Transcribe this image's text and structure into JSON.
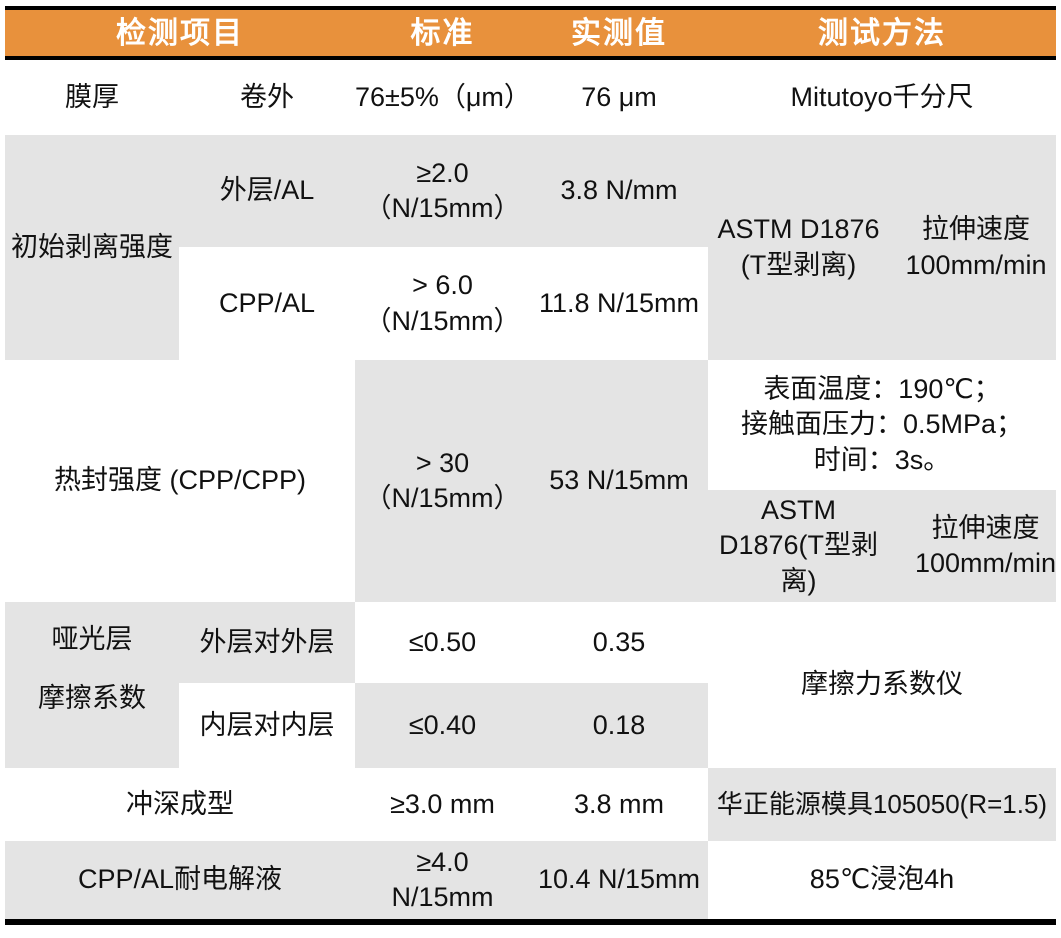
{
  "colors": {
    "header_bg": "#E8913C",
    "shade_bg": "#E4E4E4",
    "rule": "#000000",
    "text": "#111111",
    "header_text": "#FFFFFF"
  },
  "header": {
    "col_item": "检测项目",
    "col_standard": "标准",
    "col_measured": "实测值",
    "col_method": "测试方法"
  },
  "rows": {
    "thickness": {
      "item": "膜厚",
      "sub_item": "卷外",
      "standard": "76±5%（μm）",
      "measured": "76 μm",
      "method": "Mitutoyo千分尺"
    },
    "initial_peel": {
      "item": "初始剥离强度",
      "outer_al": {
        "sub_item": "外层/AL",
        "standard": "≥2.0\n（N/15mm）",
        "measured": "3.8 N/mm"
      },
      "cpp_al": {
        "sub_item": "CPP/AL",
        "standard": "> 6.0\n（N/15mm）",
        "measured": "11.8 N/15mm"
      },
      "method_standard": "ASTM D1876\n(T型剥离)",
      "method_speed": "拉伸速度\n100mm/min"
    },
    "heat_seal": {
      "item": "热封强度 (CPP/CPP)",
      "standard": "> 30\n（N/15mm）",
      "measured": "53 N/15mm",
      "conditions": "表面温度：190℃；\n接触面压力：0.5MPa；\n时间：3s。",
      "method_standard": "ASTM\nD1876(T型剥\n离)",
      "method_speed": "拉伸速度\n100mm/min"
    },
    "friction": {
      "item": "哑光层\n摩擦系数",
      "outer_vs_outer": {
        "sub_item": "外层对外层",
        "standard": "≤0.50",
        "measured": "0.35"
      },
      "inner_vs_inner": {
        "sub_item": "内层对内层",
        "standard": "≤0.40",
        "measured": "0.18"
      },
      "method": "摩擦力系数仪"
    },
    "deep_forming": {
      "item": "冲深成型",
      "standard": "≥3.0 mm",
      "measured": "3.8 mm",
      "method": "华正能源模具105050(R=1.5)"
    },
    "electrolyte_resistance": {
      "item": "CPP/AL耐电解液",
      "standard": "≥4.0\nN/15mm",
      "measured": "10.4 N/15mm",
      "method": "85℃浸泡4h"
    }
  }
}
